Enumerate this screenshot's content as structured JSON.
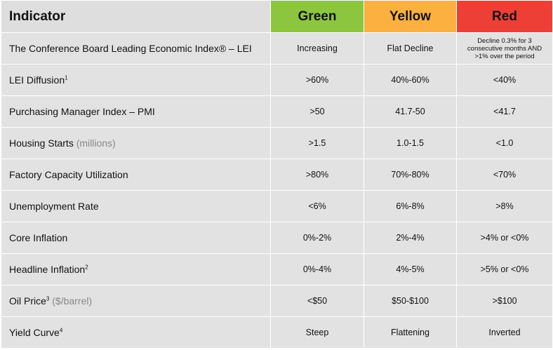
{
  "table": {
    "header": [
      "Indicator",
      "Green",
      "Yellow",
      "Red"
    ],
    "rows": [
      {
        "label": "The Conference Board Leading Economic Index® – LEI",
        "green": "Increasing",
        "yellow": "Flat Decline",
        "red": "Decline 0.3% for 3 consecutive months AND >1% over the period"
      },
      {
        "label": "LEI Diffusion",
        "note": "1",
        "green": ">60%",
        "yellow": "40%-60%",
        "red": "<40%"
      },
      {
        "label": "Purchasing Manager Index – PMI",
        "green": ">50",
        "yellow": "41.7-50",
        "red": "<41.7"
      },
      {
        "label": "Housing Starts",
        "unit": "(millions)",
        "green": ">1.5",
        "yellow": "1.0-1.5",
        "red": "<1.0"
      },
      {
        "label": "Factory Capacity Utilization",
        "green": ">80%",
        "yellow": "70%-80%",
        "red": "<70%"
      },
      {
        "label": "Unemployment Rate",
        "green": "<6%",
        "yellow": "6%-8%",
        "red": ">8%"
      },
      {
        "label": "Core Inflation",
        "green": "0%-2%",
        "yellow": "2%-4%",
        "red": ">4% or <0%"
      },
      {
        "label": "Headline Inflation",
        "note": "2",
        "green": "0%-4%",
        "yellow": "4%-5%",
        "red": ">5% or <0%"
      },
      {
        "label": "Oil Price",
        "note": "3",
        "unit": "($/barrel)",
        "green": "<$50",
        "yellow": "$50-$100",
        "red": ">$100"
      },
      {
        "label": "Yield Curve",
        "note": "4",
        "green": "Steep",
        "yellow": "Flattening",
        "red": "Inverted"
      }
    ]
  }
}
